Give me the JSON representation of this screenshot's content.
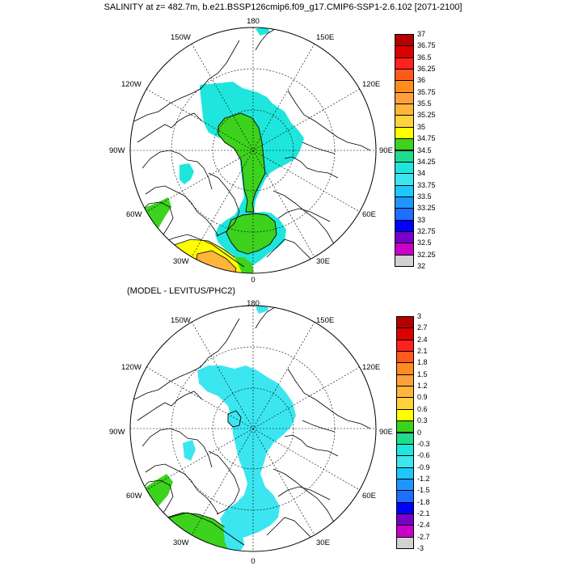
{
  "figure": {
    "title": "SALINITY at z= 482.7m, b.e21.BSSP126cmip6.f09_g17.CMIP6-SSP1-2.6.102 [2071-2100]",
    "subtitle": "(MODEL - LEVITUS/PHC2)"
  },
  "lon_labels": {
    "l180": "180",
    "l150w": "150W",
    "l150e": "150E",
    "l120w": "120W",
    "l120e": "120E",
    "l90w": "90W",
    "l90e": "90E",
    "l60w": "60W",
    "l60e": "60E",
    "l30w": "30W",
    "l30e": "30E",
    "l0": "0"
  },
  "colorbar_top": {
    "labels": [
      "37",
      "36.75",
      "36.5",
      "36.25",
      "36",
      "35.75",
      "35.5",
      "35.25",
      "35",
      "34.75",
      "34.5",
      "34.25",
      "34",
      "33.75",
      "33.5",
      "33.25",
      "33",
      "32.75",
      "32.5",
      "32.25",
      "32"
    ],
    "colors": [
      "#b40000",
      "#dc0000",
      "#ff2020",
      "#ff5a1e",
      "#ff8c1e",
      "#ffa03c",
      "#ffb43c",
      "#ffd23c",
      "#ffff00",
      "#3cd21e",
      "#1edc8c",
      "#1ee6dc",
      "#3ce6f0",
      "#1ec8ff",
      "#1e96ff",
      "#1e6eff",
      "#0000ff",
      "#7800c8",
      "#c800c8",
      "#d2d2d2",
      "#6e6e6e"
    ]
  },
  "colorbar_bottom": {
    "labels": [
      "3",
      "2.7",
      "2.4",
      "2.1",
      "1.8",
      "1.5",
      "1.2",
      "0.9",
      "0.6",
      "0.3",
      "0",
      "-0.3",
      "-0.6",
      "-0.9",
      "-1.2",
      "-1.5",
      "-1.8",
      "-2.1",
      "-2.4",
      "-2.7",
      "-3"
    ],
    "colors": [
      "#b40000",
      "#dc0000",
      "#ff2020",
      "#ff5a1e",
      "#ff8c1e",
      "#ffa03c",
      "#ffb43c",
      "#ffd23c",
      "#ffff00",
      "#3cd21e",
      "#1edc8c",
      "#1ee6dc",
      "#3ce6f0",
      "#1ec8ff",
      "#1e96ff",
      "#1e6eff",
      "#0000ff",
      "#7800c8",
      "#c800c8",
      "#d2d2d2",
      "#6e6e6e"
    ]
  },
  "map": {
    "projection": "north-polar-stereographic",
    "grid": "dotted meridians every 30 degrees and latitude circles"
  }
}
